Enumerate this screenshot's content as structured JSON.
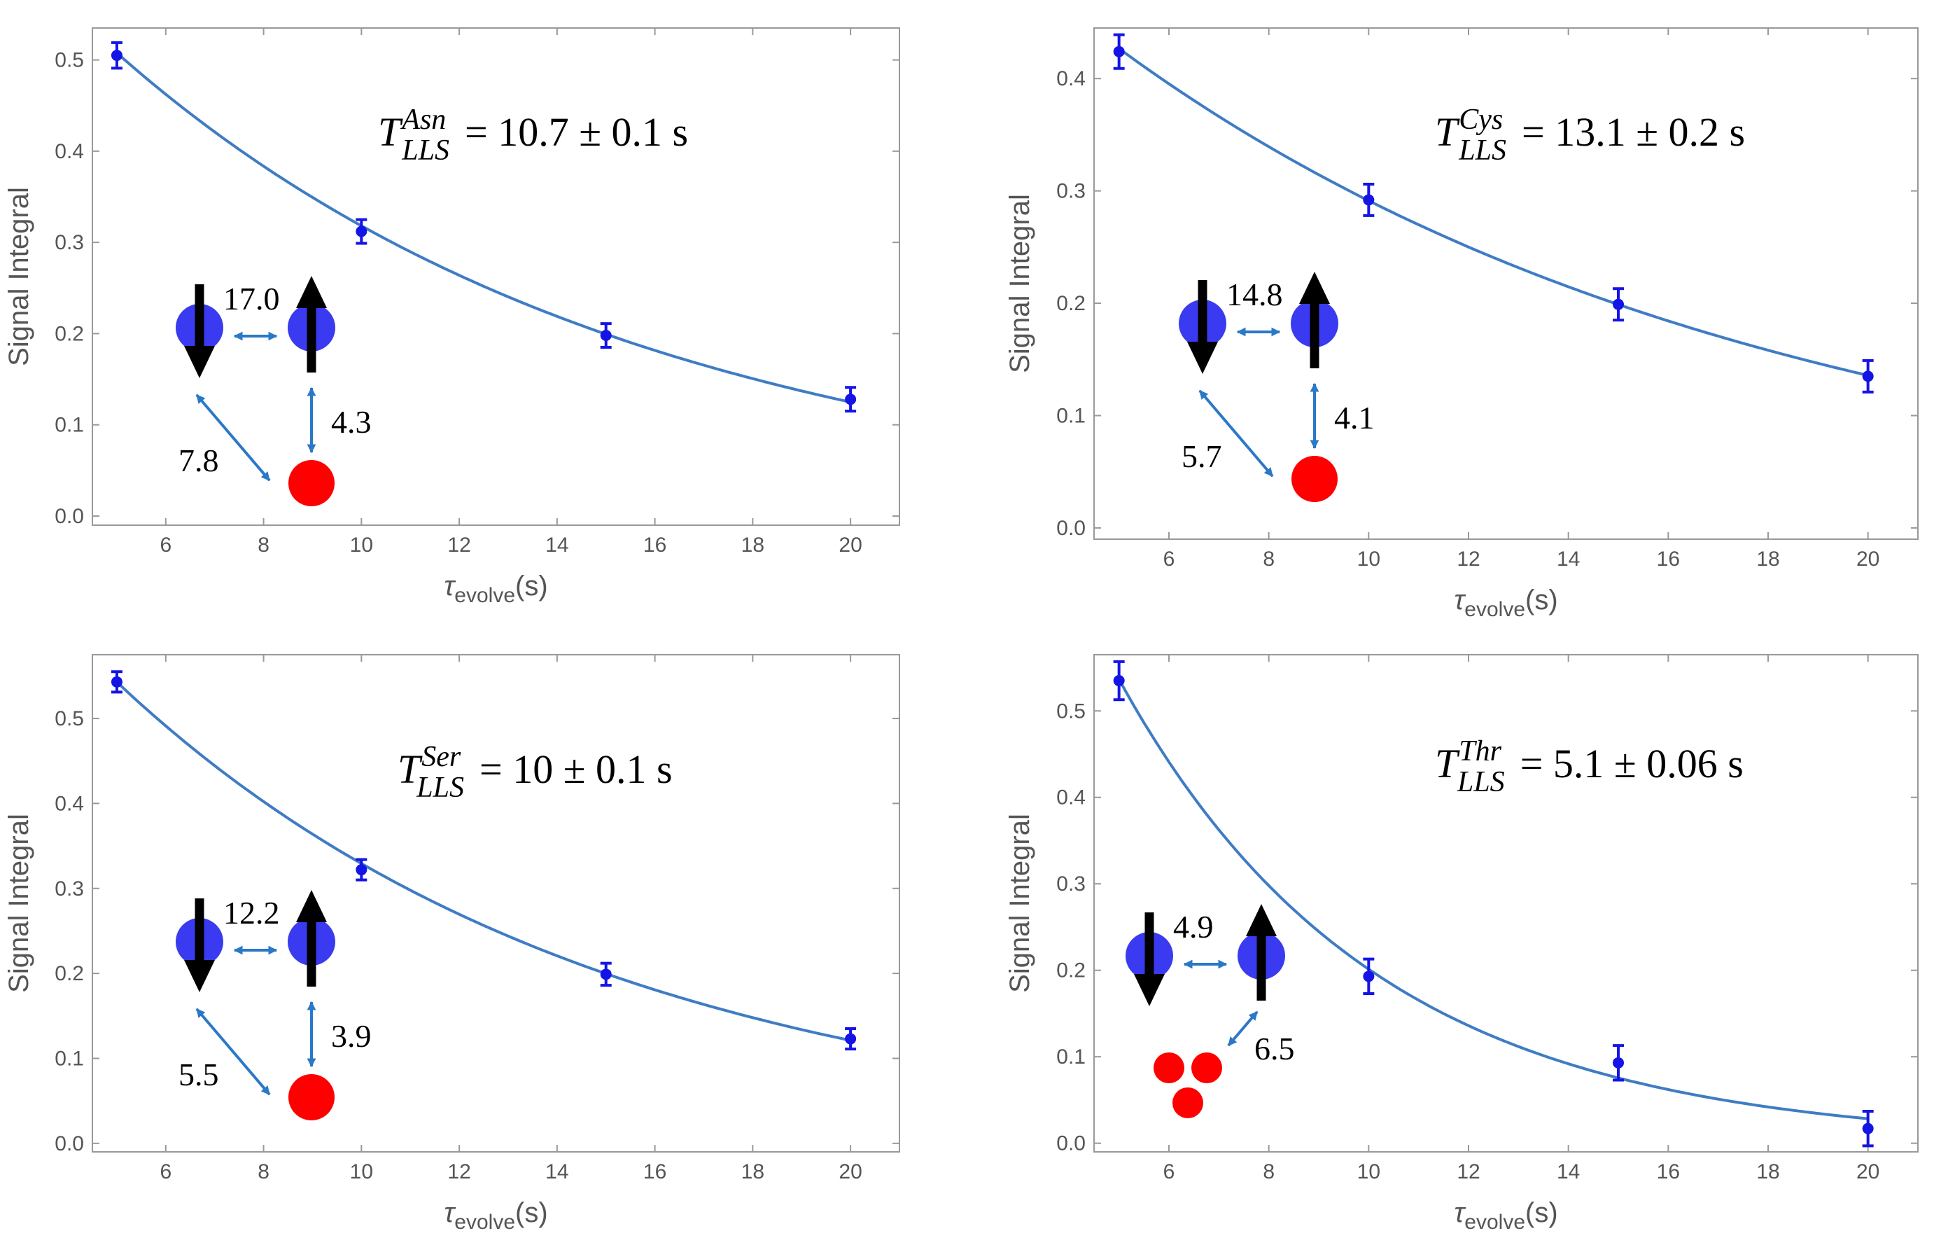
{
  "chart_data": [
    {
      "type": "scatter",
      "amino_acid": "Asn",
      "x": [
        5,
        10,
        15,
        20
      ],
      "y": [
        0.505,
        0.312,
        0.198,
        0.128
      ],
      "error": [
        0.014,
        0.013,
        0.013,
        0.013
      ],
      "fit": {
        "A": 0.81,
        "T": 10.7
      },
      "xlim": [
        4.5,
        21.0
      ],
      "ylim": [
        -0.01,
        0.535
      ],
      "xticks": [
        6,
        8,
        10,
        12,
        14,
        16,
        18,
        20
      ],
      "yticks": [
        0.0,
        0.1,
        0.2,
        0.3,
        0.4,
        0.5
      ],
      "xlabel_main": "τ",
      "xlabel_sub": "evolve",
      "xlabel_unit": "(s)",
      "ylabel": "Signal Integral",
      "eq_main": "T",
      "eq_sup": "Asn",
      "eq_sub": "LLS",
      "eq_rest": "= 10.7 ± 0.1 s",
      "couplings": [
        "17.0",
        "4.3",
        "7.8"
      ]
    },
    {
      "type": "scatter",
      "amino_acid": "Cys",
      "x": [
        5,
        10,
        15,
        20
      ],
      "y": [
        0.424,
        0.292,
        0.199,
        0.135
      ],
      "error": [
        0.015,
        0.014,
        0.014,
        0.014
      ],
      "fit": {
        "A": 0.625,
        "T": 13.1
      },
      "xlim": [
        4.5,
        21.0
      ],
      "ylim": [
        -0.01,
        0.445
      ],
      "xticks": [
        6,
        8,
        10,
        12,
        14,
        16,
        18,
        20
      ],
      "yticks": [
        0.0,
        0.1,
        0.2,
        0.3,
        0.4
      ],
      "xlabel_main": "τ",
      "xlabel_sub": "evolve",
      "xlabel_unit": "(s)",
      "ylabel": "Signal Integral",
      "eq_main": "T",
      "eq_sup": "Cys",
      "eq_sub": "LLS",
      "eq_rest": "= 13.1 ± 0.2 s",
      "couplings": [
        "14.8",
        "4.1",
        "5.7"
      ]
    },
    {
      "type": "scatter",
      "amino_acid": "Ser",
      "x": [
        5,
        10,
        15,
        20
      ],
      "y": [
        0.543,
        0.322,
        0.199,
        0.123
      ],
      "error": [
        0.012,
        0.012,
        0.013,
        0.012
      ],
      "fit": {
        "A": 0.895,
        "T": 10.0
      },
      "xlim": [
        4.5,
        21.0
      ],
      "ylim": [
        -0.01,
        0.575
      ],
      "xticks": [
        6,
        8,
        10,
        12,
        14,
        16,
        18,
        20
      ],
      "yticks": [
        0.0,
        0.1,
        0.2,
        0.3,
        0.4,
        0.5
      ],
      "xlabel_main": "τ",
      "xlabel_sub": "evolve",
      "xlabel_unit": "(s)",
      "ylabel": "Signal Integral",
      "eq_main": "T",
      "eq_sup": "Ser",
      "eq_sub": "LLS",
      "eq_rest": "= 10 ± 0.1 s",
      "couplings": [
        "12.2",
        "3.9",
        "5.5"
      ]
    },
    {
      "type": "scatter",
      "amino_acid": "Thr",
      "x": [
        5,
        10,
        15,
        20
      ],
      "y": [
        0.535,
        0.193,
        0.093,
        0.017
      ],
      "error": [
        0.022,
        0.02,
        0.02,
        0.02
      ],
      "fit": {
        "A": 1.43,
        "T": 5.1
      },
      "xlim": [
        4.5,
        21.0
      ],
      "ylim": [
        -0.01,
        0.565
      ],
      "xticks": [
        6,
        8,
        10,
        12,
        14,
        16,
        18,
        20
      ],
      "yticks": [
        0.0,
        0.1,
        0.2,
        0.3,
        0.4,
        0.5
      ],
      "xlabel_main": "τ",
      "xlabel_sub": "evolve",
      "xlabel_unit": "(s)",
      "ylabel": "Signal Integral",
      "eq_main": "T",
      "eq_sup": "Thr",
      "eq_sub": "LLS",
      "eq_rest": "= 5.1 ± 0.06 s",
      "couplings": [
        "4.9",
        "6.5"
      ]
    }
  ],
  "colors": {
    "fit_line": "#3f7cc4",
    "data_points": "#1414e6",
    "spin_blue": "#3a3af0",
    "spin_red": "#ff0000",
    "coupling_arrow": "#2a78c8",
    "axis_frame": "#999999"
  }
}
